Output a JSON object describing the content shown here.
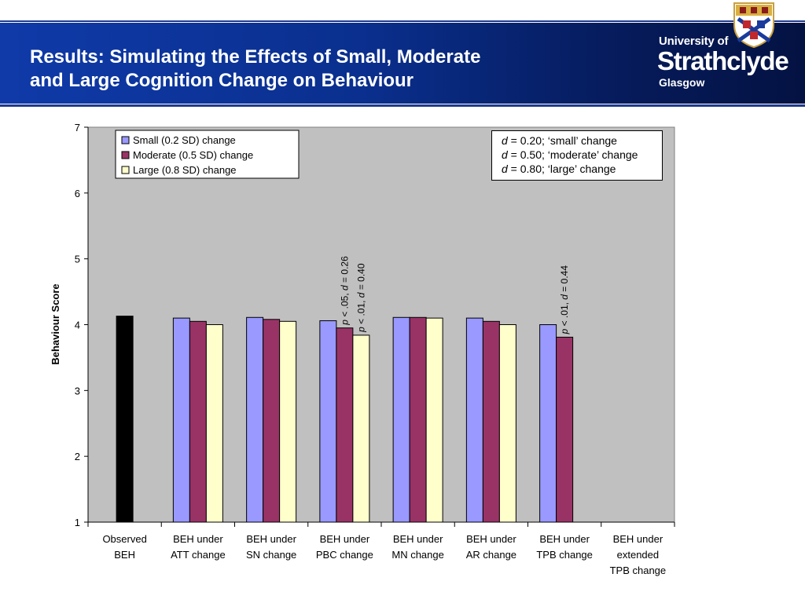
{
  "slide": {
    "title_line1": "Results: Simulating the Effects of Small, Moderate",
    "title_line2": "and Large Cognition Change on Behaviour"
  },
  "logo": {
    "line1": "University of",
    "line2": "Strathclyde",
    "line3": "Glasgow"
  },
  "annotation_box": {
    "lines": [
      {
        "var": "d",
        "text": " = 0.20; ‘small’ change"
      },
      {
        "var": "d",
        "text": " = 0.50; ‘moderate’ change"
      },
      {
        "var": "d",
        "text": " = 0.80; ‘large’ change"
      }
    ]
  },
  "colors": {
    "plot_bg": "#c0c0c0",
    "observed": "#000000",
    "small": "#9999ff",
    "moderate": "#993366",
    "large": "#ffffcc"
  },
  "chart_data": {
    "type": "bar",
    "ylabel": "Behaviour Score",
    "xlabel": "",
    "ylim": [
      1,
      7
    ],
    "yticks": [
      1,
      2,
      3,
      4,
      5,
      6,
      7
    ],
    "grid": false,
    "legend_position": "top-left",
    "categories": [
      [
        "Observed",
        "BEH"
      ],
      [
        "BEH under",
        "ATT change"
      ],
      [
        "BEH under",
        "SN change"
      ],
      [
        "BEH under",
        "PBC change"
      ],
      [
        "BEH under",
        "MN change"
      ],
      [
        "BEH under",
        "AR change"
      ],
      [
        "BEH under",
        "TPB change"
      ],
      [
        "BEH under",
        "extended",
        "TPB change"
      ]
    ],
    "observed": [
      4.13,
      null,
      null,
      null,
      null,
      null,
      null,
      null
    ],
    "series": [
      {
        "name": "Small (0.2 SD) change",
        "values": [
          null,
          4.1,
          4.11,
          4.06,
          4.11,
          4.1,
          4.0,
          null
        ]
      },
      {
        "name": "Moderate (0.5 SD) change",
        "values": [
          null,
          4.05,
          4.08,
          3.95,
          4.11,
          4.05,
          3.81,
          null
        ]
      },
      {
        "name": "Large (0.8 SD) change",
        "values": [
          null,
          4.0,
          4.05,
          3.84,
          4.1,
          4.0,
          null,
          null
        ]
      }
    ],
    "annotations": [
      {
        "category_index": 3,
        "series_index": 1,
        "parts": [
          {
            "t": "p",
            "i": true
          },
          {
            "t": " < .05, "
          },
          {
            "t": "d",
            "i": true
          },
          {
            "t": " = 0.26"
          }
        ]
      },
      {
        "category_index": 3,
        "series_index": 2,
        "parts": [
          {
            "t": "p",
            "i": true
          },
          {
            "t": " < .01, "
          },
          {
            "t": "d",
            "i": true
          },
          {
            "t": " = 0.40"
          }
        ]
      },
      {
        "category_index": 6,
        "series_index": 1,
        "parts": [
          {
            "t": "p",
            "i": true
          },
          {
            "t": " < .01, "
          },
          {
            "t": "d",
            "i": true
          },
          {
            "t": " = 0.44"
          }
        ]
      }
    ]
  }
}
